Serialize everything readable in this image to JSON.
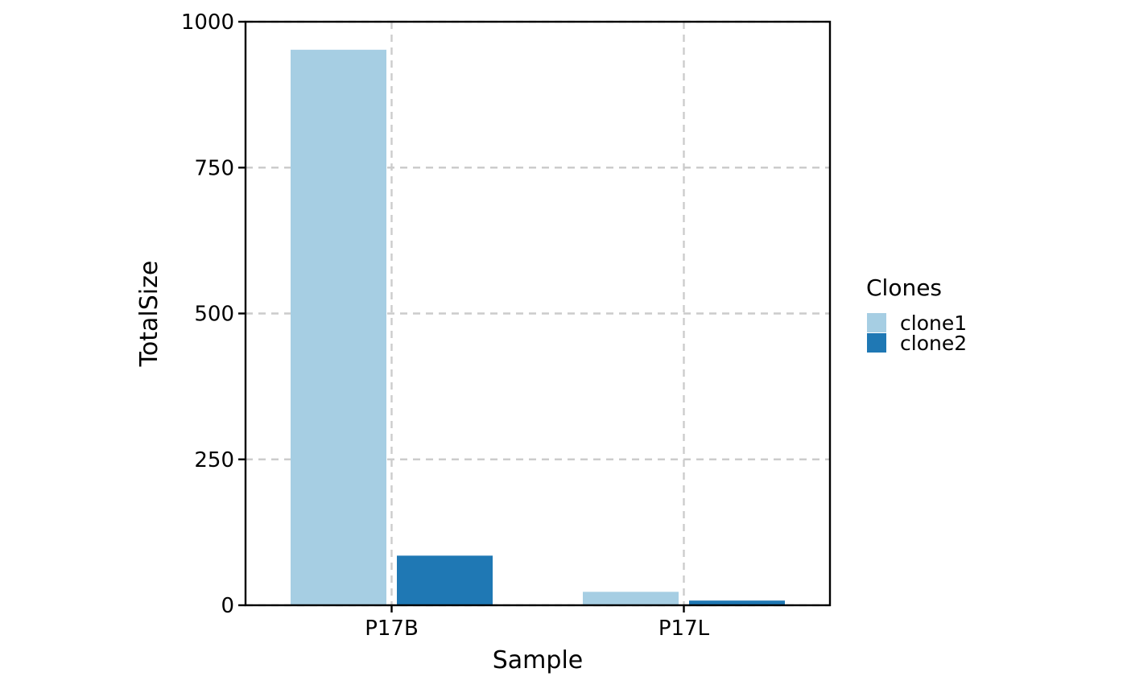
{
  "chart_data": {
    "type": "bar",
    "title": "",
    "xlabel": "Sample",
    "ylabel": "TotalSize",
    "categories": [
      "P17B",
      "P17L"
    ],
    "series": [
      {
        "name": "clone1",
        "color": "#a6cee3",
        "values": [
          952,
          23
        ]
      },
      {
        "name": "clone2",
        "color": "#1f78b4",
        "values": [
          85,
          8
        ]
      }
    ],
    "ylim": [
      0,
      1000
    ],
    "yticks": [
      0,
      250,
      500,
      750,
      1000
    ],
    "ytick_labels": [
      "0",
      "250",
      "500",
      "750",
      "1000"
    ],
    "grid": true,
    "legend": {
      "title": "Clones",
      "position": "right"
    }
  }
}
